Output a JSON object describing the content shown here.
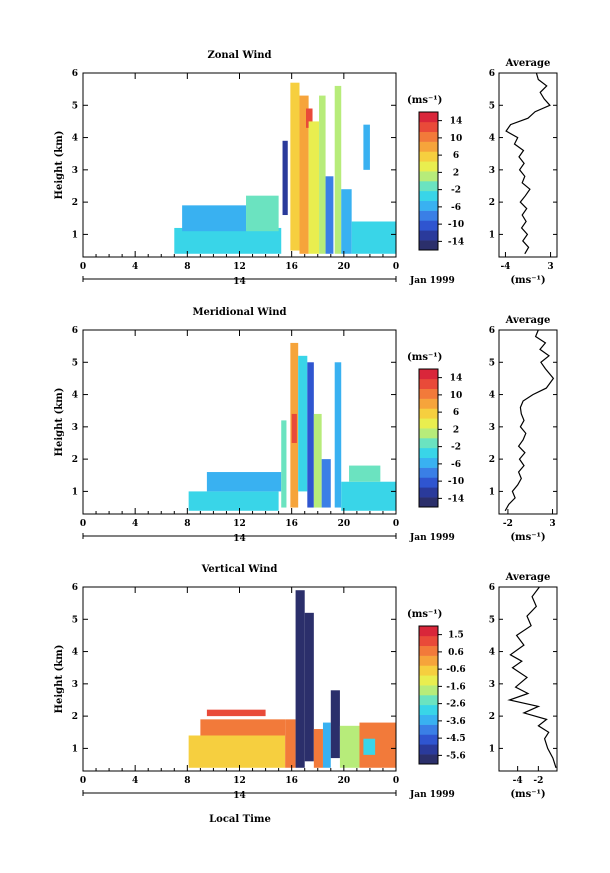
{
  "x_axis_title": "Local Time",
  "colors": {
    "zonal": [
      "#2b2f6b",
      "#2a3a9b",
      "#2f55d0",
      "#3a7fe6",
      "#39b1f1",
      "#39d5e8",
      "#6be3c0",
      "#b7ec7a",
      "#e9ee4f",
      "#f6cf3f",
      "#f6a43b",
      "#f27a3a",
      "#e94a39",
      "#d9263a"
    ],
    "vertical": [
      "#2b2f6b",
      "#2a3a9b",
      "#2f55d0",
      "#3a7fe6",
      "#39b1f1",
      "#39d5e8",
      "#6be3c0",
      "#b7ec7a",
      "#e9ee4f",
      "#f6cf3f",
      "#f6a43b",
      "#f27a3a",
      "#e94a39",
      "#d9263a"
    ]
  },
  "chart_data": [
    {
      "type": "heatmap",
      "title": "Zonal Wind",
      "ylabel": "Height (km)",
      "xlim": [
        0,
        24
      ],
      "ylim": [
        0.3,
        6.0
      ],
      "x_ticks": [
        "0",
        "4",
        "8",
        "12",
        "16",
        "20",
        "0"
      ],
      "y_ticks": [
        "1",
        "2",
        "3",
        "4",
        "5",
        "6"
      ],
      "date_row": {
        "day": "14",
        "month_label": "Jan 1999"
      },
      "colorbar": {
        "unit": "(ms⁻¹)",
        "min": -16,
        "max": 16,
        "ticks": [
          "14",
          "10",
          "6",
          "2",
          "-2",
          "-6",
          "-10",
          "-14"
        ],
        "palette": "zonal"
      },
      "profile": {
        "title": "Average",
        "xlabel": "(ms⁻¹)",
        "x_ticks": [
          "-4",
          "3"
        ],
        "y_ticks": [
          "1",
          "2",
          "3",
          "4",
          "5",
          "6"
        ],
        "xlim": [
          -5,
          4
        ],
        "ylim": [
          0.3,
          6.0
        ],
        "points": [
          [
            -1.0,
            0.4
          ],
          [
            -0.4,
            0.6
          ],
          [
            -1.3,
            0.8
          ],
          [
            -0.6,
            1.0
          ],
          [
            -1.5,
            1.2
          ],
          [
            -0.8,
            1.4
          ],
          [
            -1.4,
            1.6
          ],
          [
            -0.7,
            1.8
          ],
          [
            -1.7,
            2.0
          ],
          [
            -0.9,
            2.2
          ],
          [
            -0.2,
            2.4
          ],
          [
            -1.4,
            2.6
          ],
          [
            -1.0,
            2.8
          ],
          [
            -1.8,
            3.0
          ],
          [
            -1.1,
            3.2
          ],
          [
            -1.9,
            3.4
          ],
          [
            -1.2,
            3.6
          ],
          [
            -2.6,
            3.8
          ],
          [
            -2.1,
            4.0
          ],
          [
            -3.9,
            4.2
          ],
          [
            -3.2,
            4.4
          ],
          [
            -0.5,
            4.6
          ],
          [
            0.6,
            4.8
          ],
          [
            2.9,
            5.0
          ],
          [
            2.0,
            5.2
          ],
          [
            1.4,
            5.4
          ],
          [
            2.4,
            5.6
          ],
          [
            1.1,
            5.8
          ],
          [
            0.8,
            6.0
          ]
        ]
      },
      "blocks": [
        {
          "t0": 7.0,
          "t1": 15.2,
          "h0": 0.4,
          "h1": 1.2,
          "v": -3
        },
        {
          "t0": 7.6,
          "t1": 12.5,
          "h0": 1.1,
          "h1": 1.9,
          "v": -5
        },
        {
          "t0": 12.5,
          "t1": 15.0,
          "h0": 1.1,
          "h1": 2.2,
          "v": -2
        },
        {
          "t0": 15.3,
          "t1": 15.7,
          "h0": 1.6,
          "h1": 3.9,
          "v": -13
        },
        {
          "t0": 15.9,
          "t1": 16.6,
          "h0": 0.5,
          "h1": 5.7,
          "v": 6
        },
        {
          "t0": 16.6,
          "t1": 17.3,
          "h0": 0.4,
          "h1": 5.3,
          "v": 9
        },
        {
          "t0": 17.1,
          "t1": 17.6,
          "h0": 4.3,
          "h1": 4.9,
          "v": 12
        },
        {
          "t0": 17.3,
          "t1": 18.1,
          "h0": 0.4,
          "h1": 4.5,
          "v": 3
        },
        {
          "t0": 18.1,
          "t1": 18.6,
          "h0": 0.4,
          "h1": 5.3,
          "v": 1
        },
        {
          "t0": 18.6,
          "t1": 19.2,
          "h0": 0.4,
          "h1": 2.8,
          "v": -9
        },
        {
          "t0": 19.3,
          "t1": 19.8,
          "h0": 0.4,
          "h1": 5.6,
          "v": 2
        },
        {
          "t0": 19.8,
          "t1": 20.6,
          "h0": 0.4,
          "h1": 2.4,
          "v": -6
        },
        {
          "t0": 20.6,
          "t1": 24.0,
          "h0": 0.4,
          "h1": 1.4,
          "v": -4
        },
        {
          "t0": 21.5,
          "t1": 22.0,
          "h0": 3.0,
          "h1": 4.4,
          "v": -5
        }
      ]
    },
    {
      "type": "heatmap",
      "title": "Meridional Wind",
      "ylabel": "Height (km)",
      "xlim": [
        0,
        24
      ],
      "ylim": [
        0.3,
        6.0
      ],
      "x_ticks": [
        "0",
        "4",
        "8",
        "12",
        "16",
        "20",
        "0"
      ],
      "y_ticks": [
        "1",
        "2",
        "3",
        "4",
        "5",
        "6"
      ],
      "date_row": {
        "day": "14",
        "month_label": "Jan 1999"
      },
      "colorbar": {
        "unit": "(ms⁻¹)",
        "min": -16,
        "max": 16,
        "ticks": [
          "14",
          "10",
          "6",
          "2",
          "-2",
          "-6",
          "-10",
          "-14"
        ],
        "palette": "zonal"
      },
      "profile": {
        "title": "Average",
        "xlabel": "(ms⁻¹)",
        "x_ticks": [
          "-2",
          "3"
        ],
        "y_ticks": [
          "1",
          "2",
          "3",
          "4",
          "5",
          "6"
        ],
        "xlim": [
          -3,
          3.5
        ],
        "ylim": [
          0.3,
          6.0
        ],
        "points": [
          [
            -2.3,
            0.4
          ],
          [
            -1.9,
            0.6
          ],
          [
            -1.2,
            0.8
          ],
          [
            -1.5,
            1.0
          ],
          [
            -0.9,
            1.2
          ],
          [
            -0.5,
            1.4
          ],
          [
            -0.8,
            1.6
          ],
          [
            -0.2,
            1.8
          ],
          [
            -0.7,
            2.0
          ],
          [
            -0.1,
            2.2
          ],
          [
            -0.8,
            2.4
          ],
          [
            -0.3,
            2.6
          ],
          [
            0.0,
            2.8
          ],
          [
            -0.6,
            3.0
          ],
          [
            -0.2,
            3.2
          ],
          [
            -0.5,
            3.4
          ],
          [
            -0.6,
            3.6
          ],
          [
            -0.3,
            3.8
          ],
          [
            0.8,
            4.0
          ],
          [
            2.3,
            4.2
          ],
          [
            3.1,
            4.5
          ],
          [
            2.2,
            4.8
          ],
          [
            1.7,
            5.0
          ],
          [
            2.6,
            5.2
          ],
          [
            1.6,
            5.4
          ],
          [
            2.2,
            5.6
          ],
          [
            1.1,
            5.8
          ],
          [
            1.4,
            6.0
          ]
        ]
      },
      "blocks": [
        {
          "t0": 8.1,
          "t1": 15.0,
          "h0": 0.4,
          "h1": 1.0,
          "v": -3
        },
        {
          "t0": 9.5,
          "t1": 15.2,
          "h0": 1.0,
          "h1": 1.6,
          "v": -5
        },
        {
          "t0": 15.2,
          "t1": 15.6,
          "h0": 0.5,
          "h1": 3.2,
          "v": -2
        },
        {
          "t0": 15.9,
          "t1": 16.5,
          "h0": 0.5,
          "h1": 5.6,
          "v": 7
        },
        {
          "t0": 16.0,
          "t1": 16.4,
          "h0": 2.5,
          "h1": 3.4,
          "v": 13
        },
        {
          "t0": 16.5,
          "t1": 17.2,
          "h0": 1.0,
          "h1": 5.2,
          "v": -4
        },
        {
          "t0": 17.2,
          "t1": 17.7,
          "h0": 0.5,
          "h1": 5.0,
          "v": -10
        },
        {
          "t0": 17.7,
          "t1": 18.3,
          "h0": 0.5,
          "h1": 3.4,
          "v": 2
        },
        {
          "t0": 18.3,
          "t1": 19.0,
          "h0": 0.5,
          "h1": 2.0,
          "v": -7
        },
        {
          "t0": 19.3,
          "t1": 19.8,
          "h0": 0.5,
          "h1": 5.0,
          "v": -6
        },
        {
          "t0": 19.8,
          "t1": 24.0,
          "h0": 0.4,
          "h1": 1.3,
          "v": -3
        },
        {
          "t0": 20.4,
          "t1": 22.8,
          "h0": 1.3,
          "h1": 1.8,
          "v": -1
        }
      ]
    },
    {
      "type": "heatmap",
      "title": "Vertical Wind",
      "ylabel": "Height (km)",
      "xlabel": "Local Time",
      "xlim": [
        0,
        24
      ],
      "ylim": [
        0.3,
        6.0
      ],
      "x_ticks": [
        "0",
        "4",
        "8",
        "12",
        "16",
        "20",
        "0"
      ],
      "y_ticks": [
        "1",
        "2",
        "3",
        "4",
        "5",
        "6"
      ],
      "date_row": {
        "day": "14",
        "month_label": "Jan 1999"
      },
      "colorbar": {
        "unit": "(ms⁻¹)",
        "min": -6.0,
        "max": 2.0,
        "ticks": [
          "1.5",
          "0.6",
          "-0.6",
          "-1.6",
          "-2.6",
          "-3.6",
          "-4.5",
          "-5.6"
        ],
        "palette": "vertical"
      },
      "profile": {
        "title": "Average",
        "xlabel": "(ms⁻¹)",
        "x_ticks": [
          "-4",
          "-2"
        ],
        "y_ticks": [
          "1",
          "2",
          "3",
          "4",
          "5",
          "6"
        ],
        "xlim": [
          -5.8,
          -0.2
        ],
        "ylim": [
          0.3,
          6.0
        ],
        "points": [
          [
            -0.3,
            0.4
          ],
          [
            -0.6,
            0.7
          ],
          [
            -1.1,
            1.0
          ],
          [
            -1.4,
            1.3
          ],
          [
            -1.0,
            1.5
          ],
          [
            -2.0,
            1.7
          ],
          [
            -1.2,
            1.9
          ],
          [
            -3.4,
            2.1
          ],
          [
            -2.0,
            2.3
          ],
          [
            -4.8,
            2.5
          ],
          [
            -3.0,
            2.7
          ],
          [
            -4.2,
            2.9
          ],
          [
            -3.1,
            3.2
          ],
          [
            -4.5,
            3.5
          ],
          [
            -3.6,
            3.7
          ],
          [
            -4.7,
            3.9
          ],
          [
            -3.4,
            4.2
          ],
          [
            -4.1,
            4.5
          ],
          [
            -2.7,
            4.8
          ],
          [
            -3.1,
            5.1
          ],
          [
            -2.2,
            5.4
          ],
          [
            -2.6,
            5.7
          ],
          [
            -1.9,
            6.0
          ]
        ]
      },
      "blocks": [
        {
          "t0": 8.1,
          "t1": 15.5,
          "h0": 0.4,
          "h1": 1.4,
          "v": -0.3
        },
        {
          "t0": 9.0,
          "t1": 15.5,
          "h0": 1.4,
          "h1": 1.9,
          "v": 0.5
        },
        {
          "t0": 9.5,
          "t1": 14.0,
          "h0": 2.0,
          "h1": 2.2,
          "v": 1.0
        },
        {
          "t0": 15.5,
          "t1": 16.3,
          "h0": 0.4,
          "h1": 1.9,
          "v": 0.7
        },
        {
          "t0": 16.3,
          "t1": 17.0,
          "h0": 0.4,
          "h1": 5.9,
          "v": -5.8
        },
        {
          "t0": 17.0,
          "t1": 17.7,
          "h0": 0.6,
          "h1": 5.2,
          "v": -5.6
        },
        {
          "t0": 17.7,
          "t1": 18.4,
          "h0": 0.4,
          "h1": 1.6,
          "v": 0.3
        },
        {
          "t0": 18.4,
          "t1": 19.0,
          "h0": 0.4,
          "h1": 1.8,
          "v": -3.6
        },
        {
          "t0": 19.0,
          "t1": 19.7,
          "h0": 0.7,
          "h1": 2.8,
          "v": -5.7
        },
        {
          "t0": 19.7,
          "t1": 21.2,
          "h0": 0.4,
          "h1": 1.7,
          "v": -1.5
        },
        {
          "t0": 21.2,
          "t1": 24.0,
          "h0": 0.4,
          "h1": 1.8,
          "v": 0.4
        },
        {
          "t0": 21.5,
          "t1": 22.4,
          "h0": 0.8,
          "h1": 1.3,
          "v": -3.0
        }
      ]
    }
  ]
}
